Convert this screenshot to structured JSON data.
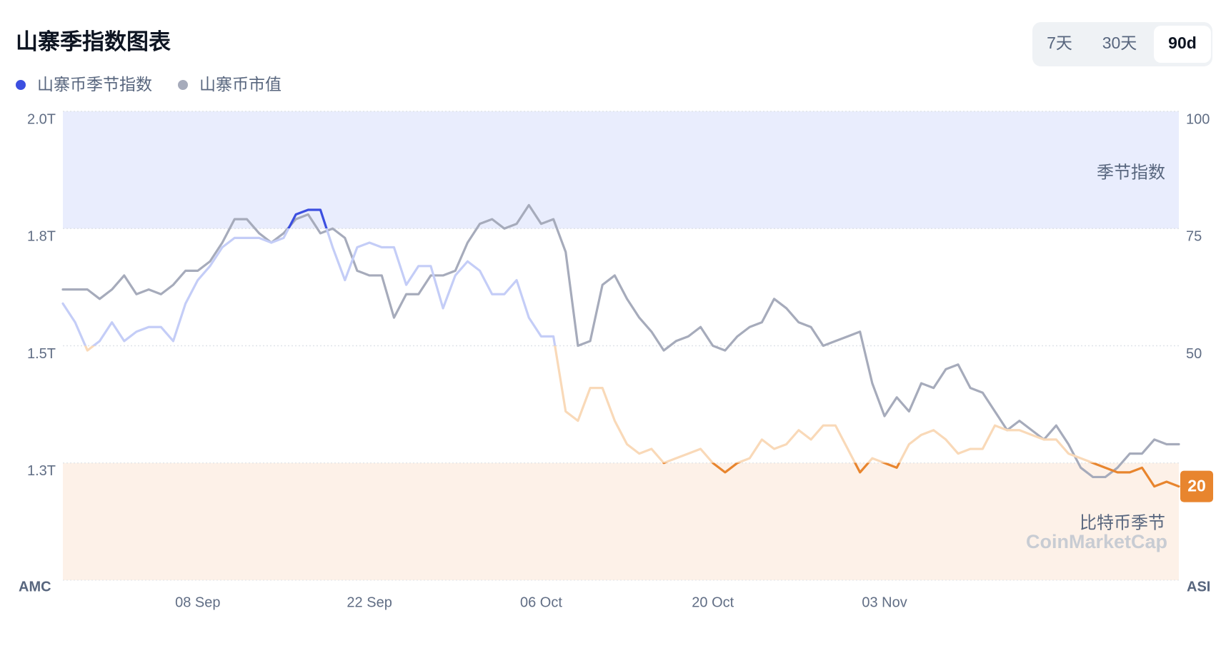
{
  "controls": {
    "options": [
      "7天",
      "30天",
      "90d"
    ],
    "selected": 2
  },
  "chart_data": {
    "type": "line",
    "title": "山寨季指数图表",
    "categories": [
      "28 Aug",
      "29 Aug",
      "30 Aug",
      "31 Aug",
      "01 Sep",
      "02 Sep",
      "03 Sep",
      "04 Sep",
      "05 Sep",
      "06 Sep",
      "07 Sep",
      "08 Sep",
      "09 Sep",
      "10 Sep",
      "11 Sep",
      "12 Sep",
      "13 Sep",
      "14 Sep",
      "15 Sep",
      "16 Sep",
      "17 Sep",
      "18 Sep",
      "19 Sep",
      "20 Sep",
      "21 Sep",
      "22 Sep",
      "23 Sep",
      "24 Sep",
      "25 Sep",
      "26 Sep",
      "27 Sep",
      "28 Sep",
      "29 Sep",
      "30 Sep",
      "01 Oct",
      "02 Oct",
      "03 Oct",
      "04 Oct",
      "05 Oct",
      "06 Oct",
      "07 Oct",
      "08 Oct",
      "09 Oct",
      "10 Oct",
      "11 Oct",
      "12 Oct",
      "13 Oct",
      "14 Oct",
      "15 Oct",
      "16 Oct",
      "17 Oct",
      "18 Oct",
      "19 Oct",
      "20 Oct",
      "21 Oct",
      "22 Oct",
      "23 Oct",
      "24 Oct",
      "25 Oct",
      "26 Oct",
      "27 Oct",
      "28 Oct",
      "29 Oct",
      "30 Oct",
      "31 Oct",
      "01 Nov",
      "02 Nov",
      "03 Nov",
      "04 Nov",
      "05 Nov",
      "06 Nov",
      "07 Nov",
      "08 Nov",
      "09 Nov",
      "10 Nov",
      "11 Nov",
      "12 Nov",
      "13 Nov",
      "14 Nov",
      "15 Nov",
      "16 Nov",
      "17 Nov",
      "18 Nov",
      "19 Nov",
      "20 Nov",
      "21 Nov",
      "22 Nov",
      "23 Nov",
      "24 Nov",
      "25 Nov",
      "26 Nov",
      "27 Nov"
    ],
    "xticks": [
      "08 Sep",
      "22 Sep",
      "06 Oct",
      "20 Oct",
      "03 Nov"
    ],
    "series": [
      {
        "name": "山寨币季节指数",
        "color": "#3c4fe0",
        "axis": "y2",
        "zones": [
          {
            "from": 75,
            "color": "#3c4fe0"
          },
          {
            "from": 50,
            "color": "#c4cdf7"
          },
          {
            "from": 25,
            "color": "#f9d9b8"
          },
          {
            "from": 0,
            "color": "#e8852e"
          }
        ],
        "values": [
          59,
          55,
          49,
          51,
          55,
          51,
          53,
          54,
          54,
          51,
          59,
          64,
          67,
          71,
          73,
          73,
          73,
          72,
          73,
          78,
          79,
          79,
          71,
          64,
          71,
          72,
          71,
          71,
          63,
          67,
          67,
          58,
          65,
          68,
          66,
          61,
          61,
          64,
          56,
          52,
          52,
          36,
          34,
          41,
          41,
          34,
          29,
          27,
          28,
          25,
          26,
          27,
          28,
          25,
          23,
          25,
          26,
          30,
          28,
          29,
          32,
          30,
          33,
          33,
          28,
          23,
          26,
          25,
          24,
          29,
          31,
          32,
          30,
          27,
          28,
          28,
          33,
          32,
          32,
          31,
          30,
          30,
          27,
          26,
          25,
          24,
          23,
          23,
          24,
          20,
          21,
          20
        ]
      },
      {
        "name": "山寨币市值",
        "color": "#a6abbb",
        "axis": "y",
        "values": [
          1.62,
          1.62,
          1.62,
          1.6,
          1.62,
          1.65,
          1.61,
          1.62,
          1.61,
          1.63,
          1.66,
          1.66,
          1.68,
          1.72,
          1.77,
          1.77,
          1.74,
          1.72,
          1.74,
          1.77,
          1.78,
          1.74,
          1.75,
          1.73,
          1.66,
          1.65,
          1.65,
          1.56,
          1.61,
          1.61,
          1.65,
          1.65,
          1.66,
          1.72,
          1.76,
          1.77,
          1.75,
          1.76,
          1.8,
          1.76,
          1.77,
          1.7,
          1.5,
          1.51,
          1.63,
          1.65,
          1.6,
          1.56,
          1.53,
          1.49,
          1.51,
          1.52,
          1.54,
          1.5,
          1.49,
          1.52,
          1.54,
          1.55,
          1.6,
          1.58,
          1.55,
          1.54,
          1.5,
          1.51,
          1.52,
          1.53,
          1.42,
          1.35,
          1.39,
          1.36,
          1.42,
          1.41,
          1.45,
          1.46,
          1.41,
          1.4,
          1.36,
          1.32,
          1.34,
          1.32,
          1.3,
          1.33,
          1.29,
          1.24,
          1.22,
          1.22,
          1.24,
          1.27,
          1.27,
          1.3,
          1.29,
          1.29
        ]
      }
    ],
    "ylabel": "AMC",
    "y2label": "ASI",
    "ylim": [
      1.0,
      2.0
    ],
    "yticks": [
      {
        "value": 2.0,
        "label": "2.0T"
      },
      {
        "value": 1.75,
        "label": "1.8T"
      },
      {
        "value": 1.5,
        "label": "1.5T"
      },
      {
        "value": 1.25,
        "label": "1.3T"
      }
    ],
    "y2lim": [
      0,
      100
    ],
    "y2ticks": [
      100,
      75,
      50
    ],
    "bands": [
      {
        "from": 75,
        "to": 100,
        "label": "季节指数",
        "color": "#e9edfd"
      },
      {
        "from": 0,
        "to": 25,
        "label": "比特币季节",
        "color": "#fdf1e8"
      }
    ],
    "grid": true,
    "watermark": "CoinMarketCap"
  }
}
